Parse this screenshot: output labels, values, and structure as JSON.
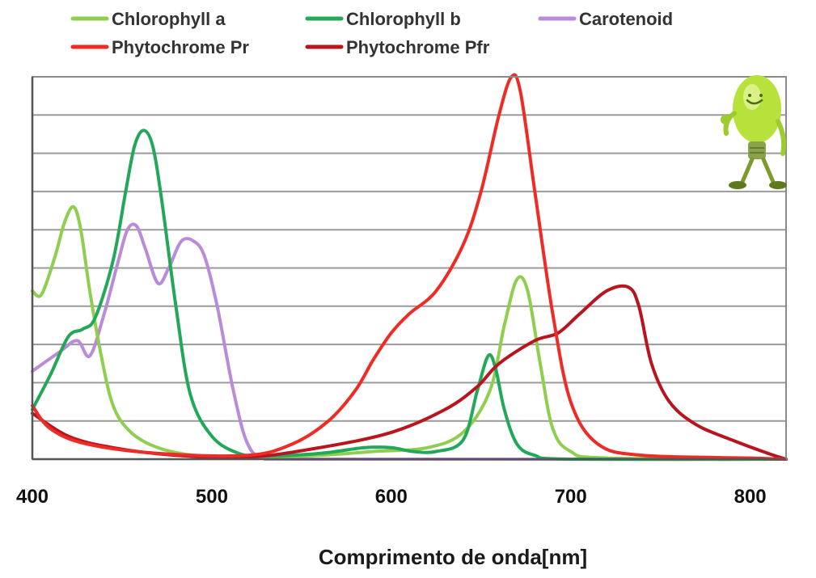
{
  "chart_data": {
    "type": "line",
    "title": "",
    "xlabel": "Comprimento de onda[nm]",
    "ylabel": "",
    "xlim": [
      400,
      820
    ],
    "ylim": [
      0,
      100
    ],
    "xticks": [
      400,
      500,
      600,
      700,
      800
    ],
    "grid": true,
    "legend_position": "top",
    "series": [
      {
        "name": "Chlorophyll a",
        "color": "#8fce4f",
        "points": [
          [
            400,
            44
          ],
          [
            405,
            43
          ],
          [
            412,
            52
          ],
          [
            418,
            62
          ],
          [
            423,
            66
          ],
          [
            427,
            60
          ],
          [
            432,
            44
          ],
          [
            438,
            28
          ],
          [
            445,
            14
          ],
          [
            455,
            7
          ],
          [
            470,
            3
          ],
          [
            490,
            1
          ],
          [
            520,
            0.5
          ],
          [
            560,
            1
          ],
          [
            590,
            2
          ],
          [
            620,
            3
          ],
          [
            640,
            7
          ],
          [
            655,
            18
          ],
          [
            663,
            35
          ],
          [
            670,
            47
          ],
          [
            676,
            44
          ],
          [
            683,
            25
          ],
          [
            690,
            8
          ],
          [
            700,
            2
          ],
          [
            720,
            0.3
          ],
          [
            820,
            0
          ]
        ]
      },
      {
        "name": "Chlorophyll b",
        "color": "#23a85a",
        "points": [
          [
            400,
            13
          ],
          [
            410,
            22
          ],
          [
            420,
            32
          ],
          [
            428,
            34
          ],
          [
            435,
            37
          ],
          [
            445,
            52
          ],
          [
            452,
            70
          ],
          [
            457,
            82
          ],
          [
            462,
            86
          ],
          [
            467,
            82
          ],
          [
            472,
            68
          ],
          [
            480,
            40
          ],
          [
            488,
            17
          ],
          [
            500,
            6
          ],
          [
            515,
            1.5
          ],
          [
            530,
            0.8
          ],
          [
            560,
            1.5
          ],
          [
            585,
            3
          ],
          [
            600,
            3
          ],
          [
            612,
            2
          ],
          [
            625,
            2
          ],
          [
            640,
            5
          ],
          [
            648,
            18
          ],
          [
            654,
            27
          ],
          [
            658,
            24
          ],
          [
            663,
            13
          ],
          [
            670,
            4
          ],
          [
            680,
            1
          ],
          [
            700,
            0
          ],
          [
            820,
            0
          ]
        ]
      },
      {
        "name": "Carotenoid",
        "color": "#b98bd8",
        "points": [
          [
            400,
            23
          ],
          [
            415,
            28
          ],
          [
            425,
            31
          ],
          [
            432,
            27
          ],
          [
            440,
            38
          ],
          [
            448,
            52
          ],
          [
            453,
            60
          ],
          [
            458,
            61
          ],
          [
            463,
            55
          ],
          [
            470,
            46
          ],
          [
            476,
            50
          ],
          [
            483,
            57
          ],
          [
            490,
            57
          ],
          [
            496,
            53
          ],
          [
            503,
            40
          ],
          [
            512,
            18
          ],
          [
            520,
            4
          ],
          [
            530,
            0.5
          ],
          [
            560,
            0
          ],
          [
            820,
            0
          ]
        ]
      },
      {
        "name": "Phytochrome Pr",
        "color": "#ee2b24",
        "points": [
          [
            400,
            14
          ],
          [
            410,
            8
          ],
          [
            430,
            4
          ],
          [
            470,
            1.5
          ],
          [
            520,
            1
          ],
          [
            545,
            4
          ],
          [
            565,
            10
          ],
          [
            580,
            18
          ],
          [
            590,
            26
          ],
          [
            600,
            33
          ],
          [
            610,
            38
          ],
          [
            625,
            44
          ],
          [
            640,
            56
          ],
          [
            650,
            70
          ],
          [
            660,
            90
          ],
          [
            667,
            100
          ],
          [
            672,
            96
          ],
          [
            680,
            70
          ],
          [
            690,
            38
          ],
          [
            700,
            15
          ],
          [
            715,
            4
          ],
          [
            740,
            1
          ],
          [
            800,
            0.3
          ],
          [
            820,
            0
          ]
        ]
      },
      {
        "name": "Phytochrome Pfr",
        "color": "#b8151e",
        "points": [
          [
            400,
            12
          ],
          [
            420,
            6
          ],
          [
            445,
            3
          ],
          [
            480,
            1
          ],
          [
            520,
            0.5
          ],
          [
            560,
            3
          ],
          [
            600,
            7
          ],
          [
            630,
            13
          ],
          [
            648,
            19
          ],
          [
            660,
            25
          ],
          [
            680,
            31
          ],
          [
            693,
            33
          ],
          [
            705,
            38
          ],
          [
            720,
            44
          ],
          [
            732,
            45
          ],
          [
            738,
            40
          ],
          [
            745,
            25
          ],
          [
            755,
            15
          ],
          [
            770,
            9
          ],
          [
            790,
            5
          ],
          [
            810,
            1.5
          ],
          [
            820,
            0
          ]
        ]
      }
    ]
  }
}
